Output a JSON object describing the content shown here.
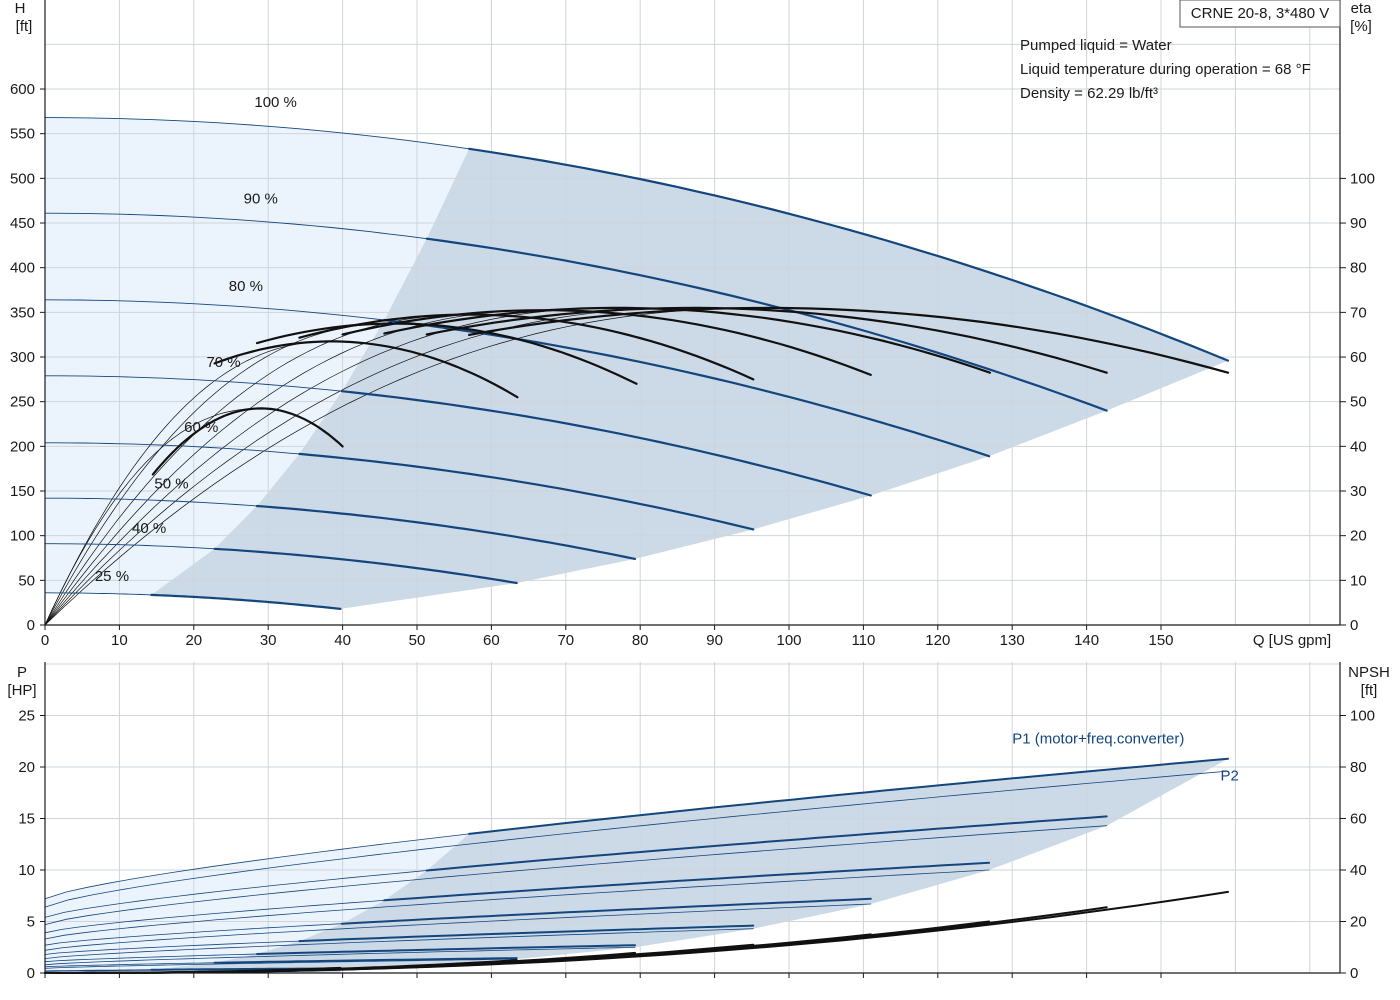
{
  "title_box": "CRNE 20-8, 3*480 V",
  "info_lines": [
    "Pumped liquid = Water",
    "Liquid temperature during operation = 68 °F",
    "Density = 62.29 lb/ft³"
  ],
  "colors": {
    "curve_blue": "#14467e",
    "band_light": "#ebf4fc",
    "band_dark": "#ccd9e6",
    "grid": "#cfd4da",
    "p_label": "#14467e"
  },
  "chart_data": [
    {
      "type": "line",
      "name": "head-efficiency",
      "x_label": "Q [US gpm]",
      "x_ticks": [
        0,
        10,
        20,
        30,
        40,
        50,
        60,
        70,
        80,
        90,
        100,
        110,
        120,
        130,
        140,
        150
      ],
      "xlim": [
        0,
        160
      ],
      "left_axis": {
        "label_line1": "H",
        "label_line2": "[ft]",
        "ticks": [
          0,
          50,
          100,
          150,
          200,
          250,
          300,
          350,
          400,
          450,
          500,
          550,
          600
        ],
        "ylim": [
          0,
          600
        ]
      },
      "right_axis": {
        "label_line1": "eta",
        "label_line2": "[%]",
        "ticks": [
          0,
          10,
          20,
          30,
          40,
          50,
          60,
          70,
          80,
          90,
          100
        ],
        "ylim": [
          0,
          135
        ]
      },
      "speed_labels": [
        {
          "text": "100 %",
          "q": 31,
          "h": 580
        },
        {
          "text": "90 %",
          "q": 29,
          "h": 472
        },
        {
          "text": "80 %",
          "q": 27,
          "h": 374
        },
        {
          "text": "70 %",
          "q": 24,
          "h": 289
        },
        {
          "text": "60 %",
          "q": 21,
          "h": 216
        },
        {
          "text": "50 %",
          "q": 17,
          "h": 153
        },
        {
          "text": "40 %",
          "q": 14,
          "h": 103
        },
        {
          "text": "25 %",
          "q": 9,
          "h": 49
        }
      ],
      "head_curves": [
        {
          "speed": 100,
          "h0": 568,
          "q_op_start": 57,
          "q_max": 159,
          "h_end": 296
        },
        {
          "speed": 90,
          "h0": 461,
          "q_op_start": 51.3,
          "q_max": 142.7,
          "h_end": 240
        },
        {
          "speed": 80,
          "h0": 364,
          "q_op_start": 45.6,
          "q_max": 126.9,
          "h_end": 189
        },
        {
          "speed": 70,
          "h0": 279,
          "q_op_start": 39.9,
          "q_max": 111,
          "h_end": 145
        },
        {
          "speed": 60,
          "h0": 204,
          "q_op_start": 34.2,
          "q_max": 95.2,
          "h_end": 107
        },
        {
          "speed": 50,
          "h0": 142,
          "q_op_start": 28.5,
          "q_max": 79.3,
          "h_end": 74
        },
        {
          "speed": 40,
          "h0": 91,
          "q_op_start": 22.8,
          "q_max": 63.4,
          "h_end": 47
        },
        {
          "speed": 25,
          "h0": 36,
          "q_op_start": 14.3,
          "q_max": 39.7,
          "h_end": 18
        }
      ],
      "efficiency_curves": [
        {
          "q_peak": 29.0,
          "eta_peak": 48.5,
          "q_start": 14.5,
          "q_end": 40.0,
          "eta_end": 40.0
        },
        {
          "q_peak": 38.5,
          "eta_peak": 63.5,
          "q_start": 22.8,
          "q_end": 63.5,
          "eta_end": 51.0
        },
        {
          "q_peak": 47.0,
          "eta_peak": 67.5,
          "q_start": 28.5,
          "q_end": 79.5,
          "eta_end": 54.0
        },
        {
          "q_peak": 57.0,
          "eta_peak": 69.5,
          "q_start": 34.2,
          "q_end": 95.2,
          "eta_end": 55.0
        },
        {
          "q_peak": 67.0,
          "eta_peak": 70.5,
          "q_start": 40.0,
          "q_end": 111.0,
          "eta_end": 56.0
        },
        {
          "q_peak": 77.0,
          "eta_peak": 71.0,
          "q_start": 45.6,
          "q_end": 127.0,
          "eta_end": 56.5
        },
        {
          "q_peak": 87.0,
          "eta_peak": 71.0,
          "q_start": 51.3,
          "q_end": 142.7,
          "eta_end": 56.5
        },
        {
          "q_peak": 97.0,
          "eta_peak": 71.0,
          "q_start": 57.0,
          "q_end": 159.0,
          "eta_end": 56.5
        }
      ]
    },
    {
      "type": "line",
      "name": "power-npsh",
      "x_ticks": [
        0,
        10,
        20,
        30,
        40,
        50,
        60,
        70,
        80,
        90,
        100,
        110,
        120,
        130,
        140,
        150
      ],
      "xlim": [
        0,
        160
      ],
      "left_axis": {
        "label_line1": "P",
        "label_line2": "[HP]",
        "ticks": [
          0,
          5,
          10,
          15,
          20,
          25
        ],
        "ylim": [
          0,
          25
        ]
      },
      "right_axis": {
        "label_line1": "NPSH",
        "label_line2": "[ft]",
        "ticks": [
          0,
          20,
          40,
          60,
          80,
          100
        ],
        "ylim": [
          0,
          100
        ]
      },
      "series_labels": [
        {
          "text": "P1 (motor+freq.converter)",
          "q": 130,
          "p": 22.3
        },
        {
          "text": "P2",
          "q": 158,
          "p": 18.7
        }
      ],
      "p1_curves": [
        {
          "speed": 100,
          "p0": 7.2,
          "p_op_start": 13.5,
          "p_end": 20.8,
          "q_op_start": 57,
          "q_max": 159
        },
        {
          "speed": 90,
          "p0": 5.4,
          "p_op_start": 9.9,
          "p_end": 15.2,
          "q_op_start": 51.3,
          "q_max": 142.7
        },
        {
          "speed": 80,
          "p0": 3.9,
          "p_op_start": 7.0,
          "p_end": 10.7,
          "q_op_start": 45.6,
          "q_max": 126.9
        },
        {
          "speed": 70,
          "p0": 2.7,
          "p_op_start": 4.7,
          "p_end": 7.2,
          "q_op_start": 39.9,
          "q_max": 111
        },
        {
          "speed": 60,
          "p0": 1.8,
          "p_op_start": 3.0,
          "p_end": 4.6,
          "q_op_start": 34.2,
          "q_max": 95.2
        },
        {
          "speed": 50,
          "p0": 1.1,
          "p_op_start": 1.8,
          "p_end": 2.7,
          "q_op_start": 28.5,
          "q_max": 79.3
        },
        {
          "speed": 40,
          "p0": 0.6,
          "p_op_start": 0.95,
          "p_end": 1.45,
          "q_op_start": 22.8,
          "q_max": 63.4
        },
        {
          "speed": 25,
          "p0": 0.2,
          "p_op_start": 0.3,
          "p_end": 0.45,
          "q_op_start": 14.3,
          "q_max": 39.7
        }
      ],
      "p2_curves": [
        {
          "speed": 100,
          "p0": 6.4,
          "p_end": 19.6,
          "q_max": 159
        },
        {
          "speed": 90,
          "p0": 4.7,
          "p_end": 14.3,
          "q_max": 142.7
        },
        {
          "speed": 80,
          "p0": 3.3,
          "p_end": 10.0,
          "q_max": 126.9
        },
        {
          "speed": 70,
          "p0": 2.2,
          "p_end": 6.7,
          "q_max": 111
        },
        {
          "speed": 60,
          "p0": 1.4,
          "p_end": 4.3,
          "q_max": 95.2
        },
        {
          "speed": 50,
          "p0": 0.8,
          "p_end": 2.5,
          "q_max": 79.3
        },
        {
          "speed": 40,
          "p0": 0.45,
          "p_end": 1.35,
          "q_max": 63.4
        },
        {
          "speed": 25,
          "p0": 0.15,
          "p_end": 0.4,
          "q_max": 39.7
        }
      ],
      "npsh_curves": [
        {
          "speed": 100,
          "q_max": 159,
          "npsh_end": 31.5
        },
        {
          "speed": 90,
          "q_max": 142.7,
          "npsh_end": 25.5
        },
        {
          "speed": 80,
          "q_max": 126.9,
          "npsh_end": 20.0
        },
        {
          "speed": 70,
          "q_max": 111,
          "npsh_end": 15.0
        },
        {
          "speed": 60,
          "q_max": 95.2,
          "npsh_end": 11.0
        },
        {
          "speed": 50,
          "q_max": 79.3,
          "npsh_end": 7.8
        },
        {
          "speed": 40,
          "q_max": 63.4,
          "npsh_end": 5.0
        },
        {
          "speed": 25,
          "q_max": 39.7,
          "npsh_end": 2.0
        }
      ]
    }
  ]
}
